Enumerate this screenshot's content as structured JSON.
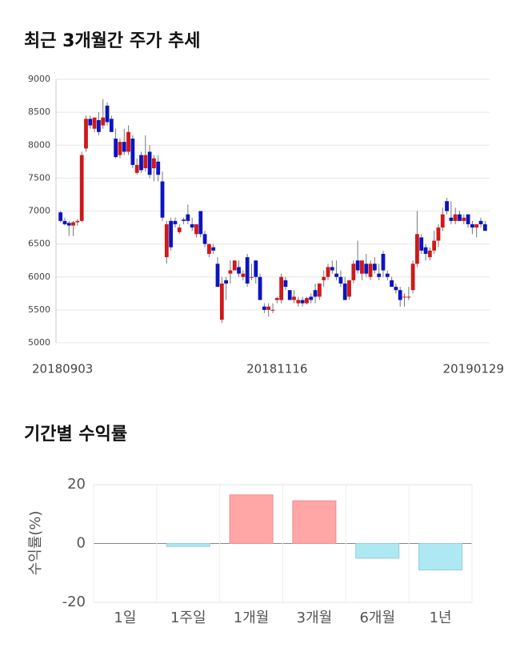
{
  "chart_data": [
    {
      "type": "candlestick",
      "title": "최근 3개월간 주가 추세",
      "categories": [
        "20180903",
        null,
        null,
        null,
        null,
        null,
        null,
        null,
        null,
        null,
        null,
        null,
        null,
        null,
        null,
        null,
        null,
        null,
        null,
        null,
        null,
        null,
        null,
        null,
        null,
        null,
        null,
        null,
        null,
        null,
        null,
        null,
        null,
        null,
        null,
        null,
        null,
        null,
        null,
        null,
        null,
        null,
        null,
        null,
        null,
        null,
        null,
        null,
        null,
        null,
        null,
        "20181116",
        null,
        null,
        null,
        null,
        null,
        null,
        null,
        null,
        null,
        null,
        null,
        null,
        null,
        null,
        null,
        null,
        null,
        null,
        null,
        null,
        null,
        null,
        null,
        null,
        null,
        null,
        null,
        null,
        null,
        null,
        null,
        null,
        null,
        null,
        null,
        null,
        null,
        null,
        null,
        null,
        null,
        null,
        null,
        null,
        null,
        null,
        null,
        null,
        "20190129"
      ],
      "open": [
        6980,
        6850,
        6820,
        6780,
        6830,
        6850,
        7950,
        8400,
        8250,
        8380,
        8300,
        8600,
        8400,
        8100,
        7850,
        8050,
        7900,
        8100,
        7580,
        7850,
        7650,
        7900,
        7650,
        7750,
        7450,
        6300,
        6850,
        6850,
        6680,
        6870,
        6950,
        6800,
        6650,
        7000,
        6650,
        6350,
        6450,
        6200,
        5350,
        5950,
        6050,
        6100,
        6150,
        6000,
        6300,
        6000,
        6250,
        6000,
        5550,
        5500,
        5500,
        5650,
        5650,
        5950,
        5800,
        5650,
        5600,
        5650,
        5600,
        5700,
        5800,
        5700,
        5950,
        6000,
        6150,
        6050,
        6000,
        5900,
        5700,
        5950,
        6250,
        6050,
        6200,
        6000,
        6200,
        6050,
        6350,
        6050,
        5950,
        5850,
        5800,
        5700,
        5700,
        5800,
        6200,
        6600,
        6450,
        6300,
        6400,
        6550,
        6750,
        7150,
        6900,
        6850,
        6950,
        6850,
        6950,
        6800,
        6750,
        6850,
        6800
      ],
      "high": [
        7000,
        6900,
        6850,
        6850,
        6880,
        7900,
        8450,
        8450,
        8400,
        8500,
        8700,
        8650,
        8450,
        8250,
        8100,
        8250,
        8300,
        8150,
        7800,
        7900,
        8150,
        8000,
        7850,
        7850,
        7600,
        6850,
        6900,
        6900,
        6800,
        6900,
        7100,
        6900,
        6800,
        7000,
        6700,
        6500,
        6500,
        6300,
        6000,
        6000,
        6250,
        6250,
        6250,
        6100,
        6350,
        6200,
        6250,
        6050,
        5600,
        5600,
        5600,
        5700,
        6050,
        6000,
        5800,
        5800,
        5700,
        5700,
        5700,
        5750,
        5900,
        5900,
        6100,
        6200,
        6250,
        6250,
        6100,
        6000,
        5950,
        6250,
        6550,
        6250,
        6350,
        6250,
        6300,
        6200,
        6400,
        6100,
        6000,
        5900,
        5850,
        5750,
        5850,
        6250,
        7000,
        6650,
        6500,
        6450,
        6700,
        6800,
        7050,
        7200,
        7150,
        7050,
        7000,
        6950,
        6950,
        6850,
        6800,
        6900,
        6850
      ],
      "low": [
        6830,
        6780,
        6620,
        6620,
        6780,
        6830,
        7900,
        8250,
        8200,
        8150,
        8250,
        8300,
        8200,
        7800,
        7800,
        7850,
        7850,
        7650,
        7550,
        7580,
        7600,
        7500,
        7450,
        7450,
        6850,
        6200,
        6400,
        6750,
        6650,
        6800,
        6800,
        6700,
        6600,
        6600,
        6450,
        6300,
        6350,
        5850,
        5300,
        5650,
        5900,
        6100,
        6000,
        5950,
        5850,
        5950,
        5900,
        5650,
        5450,
        5400,
        5450,
        5600,
        5600,
        5800,
        5650,
        5600,
        5550,
        5550,
        5580,
        5600,
        5600,
        5650,
        5850,
        5950,
        6050,
        5950,
        5850,
        5650,
        5650,
        5900,
        6050,
        5950,
        6000,
        5950,
        6050,
        5950,
        6000,
        5950,
        5850,
        5750,
        5550,
        5550,
        5650,
        5750,
        6150,
        6350,
        6250,
        6250,
        6350,
        6450,
        6700,
        6950,
        6800,
        6800,
        6850,
        6800,
        6750,
        6650,
        6600,
        6750,
        6700
      ],
      "close": [
        6850,
        6800,
        6780,
        6830,
        6850,
        7850,
        8400,
        8300,
        8420,
        8200,
        8420,
        8350,
        8200,
        7820,
        8050,
        7900,
        8200,
        7700,
        7700,
        7620,
        7850,
        7550,
        7800,
        7550,
        6900,
        6800,
        6450,
        6800,
        6750,
        6850,
        6850,
        6750,
        6800,
        6650,
        6500,
        6500,
        6400,
        5850,
        5900,
        5900,
        6100,
        6250,
        6050,
        6050,
        5900,
        6000,
        6000,
        5650,
        5500,
        5550,
        5500,
        5680,
        6000,
        5850,
        5650,
        5700,
        5650,
        5600,
        5680,
        5650,
        5700,
        5900,
        6000,
        6150,
        6100,
        6000,
        5900,
        5650,
        5950,
        6200,
        6100,
        6250,
        6050,
        6200,
        6100,
        6000,
        6100,
        6000,
        5850,
        5800,
        5650,
        5700,
        5700,
        6200,
        6650,
        6400,
        6350,
        6400,
        6550,
        6750,
        6950,
        7000,
        6850,
        6950,
        6850,
        6900,
        6800,
        6750,
        6800,
        6800,
        6700
      ],
      "up_color": "#d01818",
      "down_color": "#0c14c0",
      "ylim": [
        5000,
        9000
      ],
      "yticks": [
        5000,
        5500,
        6000,
        6500,
        7000,
        7500,
        8000,
        8500,
        9000
      ],
      "grid": true
    },
    {
      "type": "bar",
      "title": "기간별 수익률",
      "ylabel": "수익률(%)",
      "categories": [
        "1일",
        "1주일",
        "1개월",
        "3개월",
        "6개월",
        "1년"
      ],
      "values": [
        0,
        -1,
        16.5,
        14.5,
        -5,
        -9
      ],
      "positive_color": "#ffa6a6",
      "negative_color": "#aee8f2",
      "ylim": [
        -20,
        20
      ],
      "yticks": [
        -20,
        0,
        20
      ],
      "grid": true
    }
  ]
}
